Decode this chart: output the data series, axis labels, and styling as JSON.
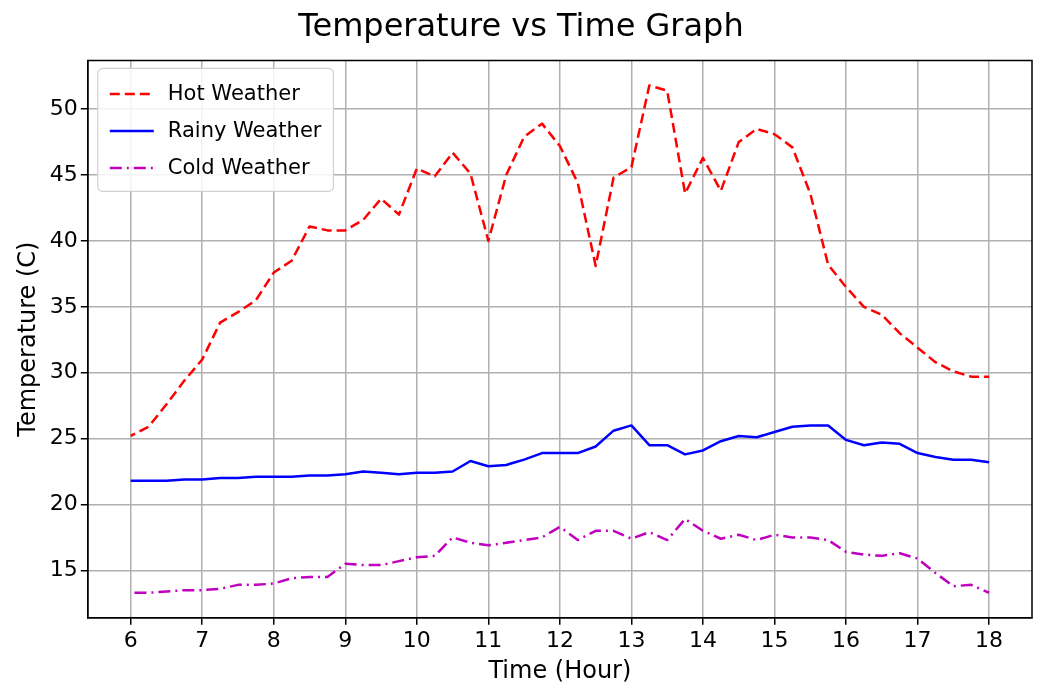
{
  "chart_data": {
    "type": "line",
    "title": "Temperature vs Time Graph",
    "xlabel": "Time (Hour)",
    "ylabel": "Temperature (C)",
    "x": [
      6,
      6.25,
      6.5,
      6.75,
      7,
      7.25,
      7.5,
      7.75,
      8,
      8.25,
      8.5,
      8.75,
      9,
      9.25,
      9.5,
      9.75,
      10,
      10.25,
      10.5,
      10.75,
      11,
      11.25,
      11.5,
      11.75,
      12,
      12.25,
      12.5,
      12.75,
      13,
      13.25,
      13.5,
      13.75,
      14,
      14.25,
      14.5,
      14.75,
      15,
      15.25,
      15.5,
      15.75,
      16,
      16.25,
      16.5,
      16.75,
      17,
      17.25,
      17.5,
      17.75,
      18
    ],
    "series": [
      {
        "name": "Hot Weather",
        "color": "#ff0000",
        "line_style": "dashed",
        "values": [
          25.2,
          25.9,
          27.6,
          29.4,
          31,
          33.8,
          34.6,
          35.5,
          37.6,
          38.5,
          41.1,
          40.8,
          40.8,
          41.6,
          43.2,
          42,
          45.5,
          44.9,
          46.7,
          45.1,
          40,
          45,
          47.9,
          48.9,
          47.2,
          44.4,
          38.1,
          44.8,
          45.6,
          51.8,
          51.4,
          43.6,
          46.3,
          43.8,
          47.5,
          48.5,
          48.1,
          47.1,
          43.6,
          38.2,
          36.5,
          35,
          34.4,
          33,
          31.9,
          30.8,
          30.1,
          29.7,
          29.7
        ]
      },
      {
        "name": "Rainy Weather",
        "color": "#0000ff",
        "line_style": "solid",
        "values": [
          21.8,
          21.8,
          21.8,
          21.9,
          21.9,
          22,
          22,
          22.1,
          22.1,
          22.1,
          22.2,
          22.2,
          22.3,
          22.5,
          22.4,
          22.3,
          22.4,
          22.4,
          22.5,
          23.3,
          22.9,
          23,
          23.4,
          23.9,
          23.9,
          23.9,
          24.4,
          25.6,
          26,
          24.5,
          24.5,
          23.8,
          24.1,
          24.8,
          25.2,
          25.1,
          25.5,
          25.9,
          26,
          26,
          24.9,
          24.5,
          24.7,
          24.6,
          23.9,
          23.6,
          23.4,
          23.4,
          23.2
        ]
      },
      {
        "name": "Cold Weather",
        "color": "#bf00bf",
        "line_style": "dashdot",
        "values": [
          13.3,
          13.3,
          13.4,
          13.5,
          13.5,
          13.6,
          13.9,
          13.9,
          14,
          14.4,
          14.5,
          14.5,
          15.5,
          15.4,
          15.4,
          15.7,
          16,
          16.1,
          17.5,
          17.1,
          16.9,
          17.1,
          17.3,
          17.5,
          18.3,
          17.3,
          18,
          18,
          17.4,
          17.9,
          17.3,
          18.9,
          18,
          17.4,
          17.7,
          17.3,
          17.7,
          17.5,
          17.5,
          17.3,
          16.4,
          16.2,
          16.1,
          16.3,
          15.9,
          14.8,
          13.8,
          13.9,
          13.3
        ]
      }
    ],
    "xlim": [
      5.4,
      18.6
    ],
    "xticks": [
      6,
      7,
      8,
      9,
      10,
      11,
      12,
      13,
      14,
      15,
      16,
      17,
      18
    ],
    "ylim": [
      11.4,
      53.7
    ],
    "yticks": [
      15,
      20,
      25,
      30,
      35,
      40,
      45,
      50
    ],
    "grid": true,
    "legend": "top left",
    "marker": "none"
  }
}
